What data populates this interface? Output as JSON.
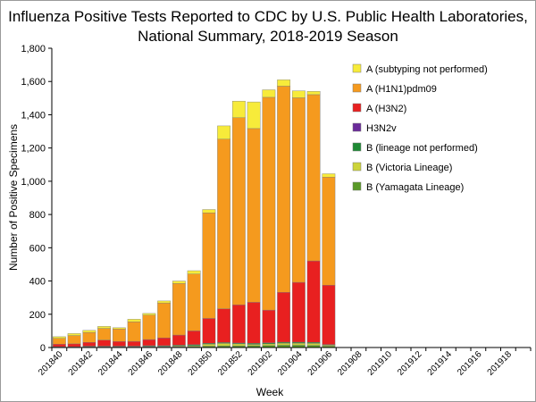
{
  "chart_data": {
    "type": "bar",
    "stacked": true,
    "title_line1": "Influenza Positive Tests Reported to CDC by U.S. Public Health Laboratories,",
    "title_line2": "National Summary, 2018-2019 Season",
    "xlabel": "Week",
    "ylabel": "Number of Positive Specimens",
    "ylim": [
      0,
      1800
    ],
    "yticks": [
      0,
      200,
      400,
      600,
      800,
      1000,
      1200,
      1400,
      1600,
      1800
    ],
    "ytick_labels": [
      "0",
      "200",
      "400",
      "600",
      "800",
      "1,000",
      "1,200",
      "1,400",
      "1,600",
      "1,800"
    ],
    "grid": false,
    "legend_position": "right",
    "categories": [
      "201840",
      "201841",
      "201842",
      "201843",
      "201844",
      "201845",
      "201846",
      "201847",
      "201848",
      "201849",
      "201850",
      "201851",
      "201852",
      "201901",
      "201902",
      "201903",
      "201904",
      "201905",
      "201906",
      "201907",
      "201908",
      "201909",
      "201910",
      "201911",
      "201912",
      "201913",
      "201914",
      "201915",
      "201916",
      "201917",
      "201918",
      "201919"
    ],
    "tick_labels": [
      "201840",
      "201842",
      "201844",
      "201846",
      "201848",
      "201850",
      "201852",
      "201902",
      "201904",
      "201906",
      "201908",
      "201910",
      "201912",
      "201914",
      "201916",
      "201918"
    ],
    "series": [
      {
        "name": "B (Yamagata Lineage)",
        "color": "#5a9a28",
        "values": [
          2,
          2,
          3,
          3,
          3,
          3,
          4,
          4,
          5,
          6,
          8,
          10,
          10,
          11,
          12,
          14,
          14,
          13,
          8,
          0,
          0,
          0,
          0,
          0,
          0,
          0,
          0,
          0,
          0,
          0,
          0,
          0
        ]
      },
      {
        "name": "B (Victoria Lineage)",
        "color": "#ccd43a",
        "values": [
          1,
          1,
          2,
          2,
          2,
          2,
          3,
          3,
          4,
          5,
          12,
          15,
          12,
          8,
          10,
          12,
          12,
          12,
          6,
          0,
          0,
          0,
          0,
          0,
          0,
          0,
          0,
          0,
          0,
          0,
          0,
          0
        ]
      },
      {
        "name": "B (lineage not performed)",
        "color": "#1e8a34",
        "values": [
          2,
          2,
          3,
          3,
          3,
          3,
          4,
          4,
          5,
          6,
          5,
          5,
          5,
          6,
          6,
          6,
          6,
          6,
          4,
          0,
          0,
          0,
          0,
          0,
          0,
          0,
          0,
          0,
          0,
          0,
          0,
          0
        ]
      },
      {
        "name": "H3N2v",
        "color": "#6a2a9a",
        "values": [
          0,
          0,
          0,
          0,
          0,
          0,
          0,
          0,
          0,
          0,
          0,
          0,
          0,
          0,
          0,
          0,
          0,
          0,
          0,
          0,
          0,
          0,
          0,
          0,
          0,
          0,
          0,
          0,
          0,
          0,
          0,
          0
        ]
      },
      {
        "name": "A (H3N2)",
        "color": "#e82020",
        "values": [
          15,
          17,
          23,
          37,
          28,
          29,
          37,
          47,
          61,
          83,
          150,
          203,
          230,
          247,
          197,
          300,
          360,
          490,
          357,
          0,
          0,
          0,
          0,
          0,
          0,
          0,
          0,
          0,
          0,
          0,
          0,
          0
        ]
      },
      {
        "name": "A (H1N1)pdm09",
        "color": "#f59a1e",
        "values": [
          35,
          50,
          60,
          70,
          75,
          118,
          147,
          210,
          310,
          342,
          635,
          1020,
          1125,
          1045,
          1280,
          1240,
          1110,
          1000,
          650,
          0,
          0,
          0,
          0,
          0,
          0,
          0,
          0,
          0,
          0,
          0,
          0,
          0
        ]
      },
      {
        "name": "A (subtyping not performed)",
        "color": "#f7eb3a",
        "values": [
          10,
          12,
          12,
          12,
          8,
          15,
          10,
          12,
          15,
          20,
          20,
          80,
          100,
          160,
          45,
          38,
          42,
          20,
          20,
          0,
          0,
          0,
          0,
          0,
          0,
          0,
          0,
          0,
          0,
          0,
          0,
          0
        ]
      }
    ],
    "legend_order": [
      "A (subtyping not performed)",
      "A (H1N1)pdm09",
      "A (H3N2)",
      "H3N2v",
      "B (lineage not performed)",
      "B (Victoria Lineage)",
      "B (Yamagata Lineage)"
    ]
  }
}
